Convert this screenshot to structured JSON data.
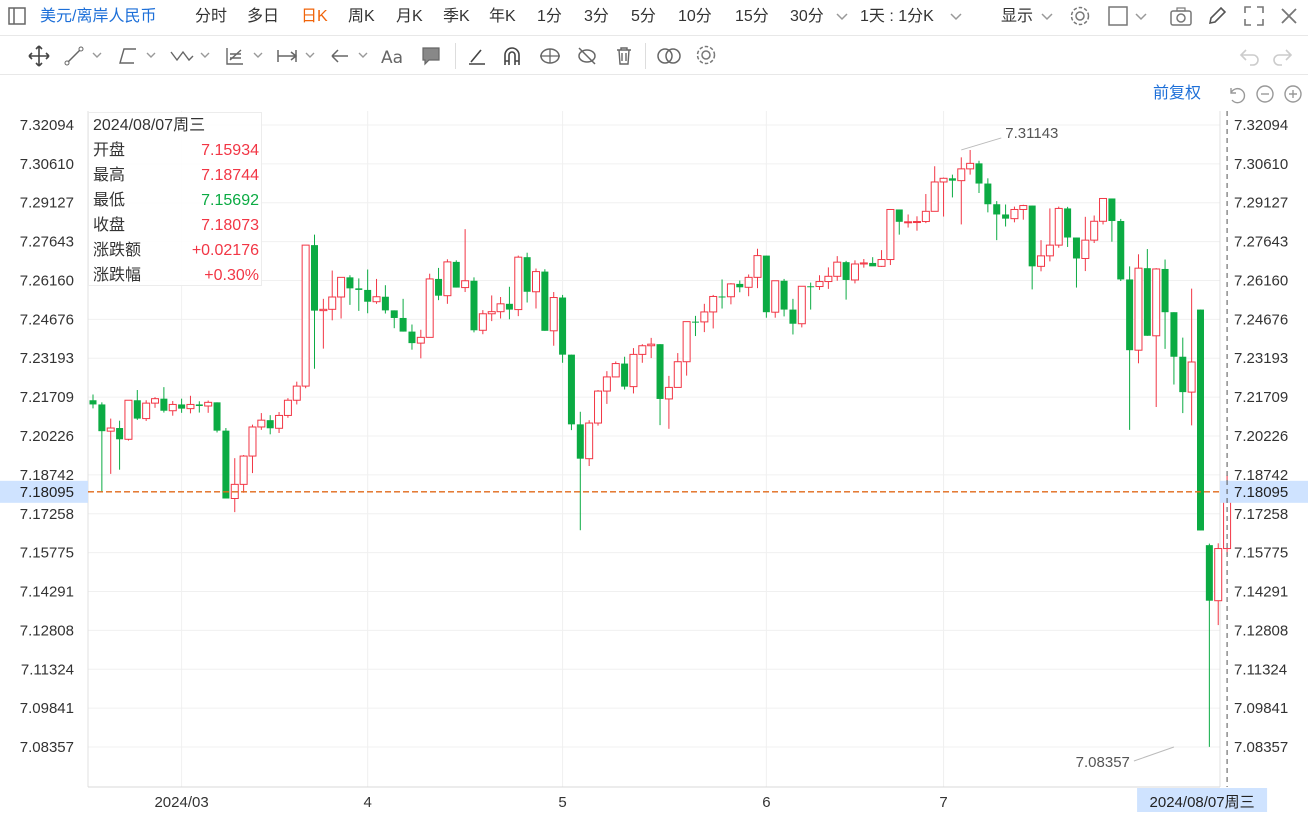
{
  "toolbar": {
    "symbol": "美元/离岸人民币",
    "periods": [
      "分时",
      "多日",
      "日K",
      "周K",
      "月K",
      "季K",
      "年K",
      "1分",
      "3分",
      "5分",
      "10分",
      "15分",
      "30分"
    ],
    "active_period": "日K",
    "range_select": "1天 : 1分K",
    "display": "显示"
  },
  "adjust": "前复权",
  "ohlc": {
    "date": "2024/08/07周三",
    "rows": [
      {
        "label": "开盘",
        "value": "7.15934",
        "color": "r"
      },
      {
        "label": "最高",
        "value": "7.18744",
        "color": "r"
      },
      {
        "label": "最低",
        "value": "7.15692",
        "color": "g"
      },
      {
        "label": "收盘",
        "value": "7.18073",
        "color": "r"
      },
      {
        "label": "涨跌额",
        "value": "+0.02176",
        "color": "r"
      },
      {
        "label": "涨跌幅",
        "value": "+0.30%",
        "color": "r"
      }
    ]
  },
  "chart_data": {
    "type": "candlestick",
    "y_ticks": [
      "7.32094",
      "7.30610",
      "7.29127",
      "7.27643",
      "7.26160",
      "7.24676",
      "7.23193",
      "7.21709",
      "7.20226",
      "7.18742",
      "7.17258",
      "7.15775",
      "7.14291",
      "7.12808",
      "7.11324",
      "7.09841",
      "7.08357"
    ],
    "ylim": [
      7.07,
      7.33
    ],
    "x_labels": [
      {
        "label": "2024/03",
        "at": 10
      },
      {
        "label": "4",
        "at": 31
      },
      {
        "label": "5",
        "at": 53
      },
      {
        "label": "6",
        "at": 76
      },
      {
        "label": "7",
        "at": 96
      }
    ],
    "last_price": "7.18095",
    "last_value": 7.18095,
    "high_annotation": {
      "label": "7.31143",
      "value": 7.31143,
      "at": 98
    },
    "low_annotation": {
      "label": "7.08357",
      "value": 7.08357,
      "at": 122
    },
    "crosshair_label": "2024/08/07周三",
    "candles": [
      [
        7.2159,
        7.2143,
        7.2181,
        7.2128
      ],
      [
        7.2143,
        7.2041,
        7.2151,
        7.1811
      ],
      [
        7.2041,
        7.2053,
        7.2089,
        7.1878
      ],
      [
        7.2053,
        7.201,
        7.2081,
        7.1894
      ],
      [
        7.201,
        7.2159,
        7.2159,
        7.2005
      ],
      [
        7.2159,
        7.2089,
        7.2198,
        7.2084
      ],
      [
        7.2089,
        7.2148,
        7.2159,
        7.208
      ],
      [
        7.2148,
        7.2165,
        7.2171,
        7.213
      ],
      [
        7.2165,
        7.2119,
        7.2209,
        7.2112
      ],
      [
        7.2119,
        7.2143,
        7.2156,
        7.21
      ],
      [
        7.2143,
        7.2127,
        7.2165,
        7.2111
      ],
      [
        7.2127,
        7.2143,
        7.2176,
        7.2109
      ],
      [
        7.2143,
        7.2137,
        7.2155,
        7.2112
      ],
      [
        7.2137,
        7.2151,
        7.2158,
        7.2111
      ],
      [
        7.2151,
        7.2043,
        7.2151,
        7.2036
      ],
      [
        7.2043,
        7.1784,
        7.2053,
        7.1784
      ],
      [
        7.1784,
        7.1838,
        7.1938,
        7.1732
      ],
      [
        7.1838,
        7.1946,
        7.195,
        7.1806
      ],
      [
        7.1946,
        7.2057,
        7.2066,
        7.1881
      ],
      [
        7.2057,
        7.2083,
        7.211,
        7.2046
      ],
      [
        7.2083,
        7.2052,
        7.2102,
        7.2029
      ],
      [
        7.2052,
        7.2101,
        7.2114,
        7.2034
      ],
      [
        7.2101,
        7.2159,
        7.2167,
        7.2092
      ],
      [
        7.2159,
        7.2213,
        7.223,
        7.2143
      ],
      [
        7.2213,
        7.2751,
        7.2751,
        7.2205
      ],
      [
        7.2751,
        7.2501,
        7.2791,
        7.2279
      ],
      [
        7.2501,
        7.2506,
        7.2546,
        7.2356
      ],
      [
        7.2506,
        7.2553,
        7.2654,
        7.2464
      ],
      [
        7.2553,
        7.2628,
        7.2628,
        7.2471
      ],
      [
        7.2628,
        7.2586,
        7.2636,
        7.2523
      ],
      [
        7.2586,
        7.258,
        7.2624,
        7.25
      ],
      [
        7.258,
        7.2535,
        7.2658,
        7.2491
      ],
      [
        7.2535,
        7.2554,
        7.2622,
        7.2527
      ],
      [
        7.2554,
        7.2502,
        7.2598,
        7.249
      ],
      [
        7.2502,
        7.2473,
        7.2502,
        7.2434
      ],
      [
        7.2473,
        7.2421,
        7.2546,
        7.2421
      ],
      [
        7.2421,
        7.2377,
        7.2448,
        7.2352
      ],
      [
        7.2377,
        7.2399,
        7.2428,
        7.2319
      ],
      [
        7.2399,
        7.2622,
        7.2642,
        7.2399
      ],
      [
        7.2622,
        7.2558,
        7.2664,
        7.2541
      ],
      [
        7.2558,
        7.2687,
        7.2697,
        7.2527
      ],
      [
        7.2687,
        7.2589,
        7.2693,
        7.2589
      ],
      [
        7.2589,
        7.2615,
        7.2812,
        7.2572
      ],
      [
        7.2615,
        7.2426,
        7.2628,
        7.2418
      ],
      [
        7.2426,
        7.2489,
        7.2503,
        7.2411
      ],
      [
        7.2489,
        7.2497,
        7.2559,
        7.2461
      ],
      [
        7.2497,
        7.2527,
        7.2553,
        7.2471
      ],
      [
        7.2527,
        7.2505,
        7.2592,
        7.2468
      ],
      [
        7.2505,
        7.2705,
        7.2711,
        7.248
      ],
      [
        7.2705,
        7.2573,
        7.2722,
        7.2532
      ],
      [
        7.2573,
        7.265,
        7.2662,
        7.2509
      ],
      [
        7.265,
        7.2424,
        7.2659,
        7.2424
      ],
      [
        7.2424,
        7.2551,
        7.2572,
        7.2367
      ],
      [
        7.2551,
        7.2333,
        7.2561,
        7.2302
      ],
      [
        7.2333,
        7.2067,
        7.2333,
        7.2045
      ],
      [
        7.2067,
        7.1936,
        7.2115,
        7.1663
      ],
      [
        7.1936,
        7.2072,
        7.2083,
        7.1908
      ],
      [
        7.2072,
        7.2194,
        7.2198,
        7.2062
      ],
      [
        7.2194,
        7.2248,
        7.227,
        7.2145
      ],
      [
        7.2248,
        7.2299,
        7.2307,
        7.2247
      ],
      [
        7.2299,
        7.2211,
        7.2325,
        7.22
      ],
      [
        7.2211,
        7.2334,
        7.2358,
        7.2185
      ],
      [
        7.2334,
        7.2367,
        7.2373,
        7.2302
      ],
      [
        7.2367,
        7.2373,
        7.2397,
        7.232
      ],
      [
        7.2373,
        7.2164,
        7.2373,
        7.2064
      ],
      [
        7.2164,
        7.2208,
        7.2252,
        7.205
      ],
      [
        7.2208,
        7.2306,
        7.2339,
        7.2215
      ],
      [
        7.2306,
        7.2459,
        7.2459,
        7.2253
      ],
      [
        7.2459,
        7.2458,
        7.2481,
        7.2404
      ],
      [
        7.2458,
        7.2496,
        7.2527,
        7.2419
      ],
      [
        7.2496,
        7.2555,
        7.2561,
        7.2433
      ],
      [
        7.2555,
        7.2554,
        7.262,
        7.2509
      ],
      [
        7.2554,
        7.2603,
        7.2606,
        7.2525
      ],
      [
        7.2603,
        7.259,
        7.2616,
        7.2571
      ],
      [
        7.259,
        7.2628,
        7.2639,
        7.2556
      ],
      [
        7.2628,
        7.2711,
        7.2737,
        7.2587
      ],
      [
        7.2711,
        7.2495,
        7.2711,
        7.2474
      ],
      [
        7.2495,
        7.2615,
        7.2615,
        7.2474
      ],
      [
        7.2615,
        7.2505,
        7.2622,
        7.2479
      ],
      [
        7.2505,
        7.2451,
        7.2546,
        7.241
      ],
      [
        7.2451,
        7.2594,
        7.2594,
        7.2437
      ],
      [
        7.2594,
        7.2593,
        7.2608,
        7.2505
      ],
      [
        7.2593,
        7.2612,
        7.2636,
        7.258
      ],
      [
        7.2612,
        7.2632,
        7.2666,
        7.2584
      ],
      [
        7.2632,
        7.2686,
        7.2709,
        7.2615
      ],
      [
        7.2686,
        7.2618,
        7.2691,
        7.2543
      ],
      [
        7.2618,
        7.2679,
        7.2693,
        7.2605
      ],
      [
        7.2679,
        7.2683,
        7.2698,
        7.2665
      ],
      [
        7.2683,
        7.267,
        7.2705,
        7.2671
      ],
      [
        7.267,
        7.2696,
        7.2732,
        7.2668
      ],
      [
        7.2696,
        7.2887,
        7.2887,
        7.2675
      ],
      [
        7.2887,
        7.284,
        7.2887,
        7.2791
      ],
      [
        7.284,
        7.284,
        7.2868,
        7.2818
      ],
      [
        7.284,
        7.2841,
        7.2861,
        7.2806
      ],
      [
        7.2841,
        7.288,
        7.2946,
        7.2835
      ],
      [
        7.288,
        7.2992,
        7.3052,
        7.2885
      ],
      [
        7.2992,
        7.3006,
        7.3009,
        7.286
      ],
      [
        7.3006,
        7.2997,
        7.302,
        7.2933
      ],
      [
        7.2997,
        7.3042,
        7.3086,
        7.283
      ],
      [
        7.3042,
        7.3063,
        7.3114,
        7.302
      ],
      [
        7.3063,
        7.2986,
        7.3073,
        7.295
      ],
      [
        7.2986,
        7.2907,
        7.3006,
        7.2876
      ],
      [
        7.2907,
        7.2868,
        7.2919,
        7.277
      ],
      [
        7.2868,
        7.2852,
        7.2906,
        7.2822
      ],
      [
        7.2852,
        7.2887,
        7.2898,
        7.2838
      ],
      [
        7.2887,
        7.2902,
        7.2905,
        7.2848
      ],
      [
        7.2902,
        7.267,
        7.2902,
        7.2582
      ],
      [
        7.267,
        7.271,
        7.277,
        7.2651
      ],
      [
        7.271,
        7.2751,
        7.2891,
        7.2689
      ],
      [
        7.2751,
        7.2891,
        7.2898,
        7.2741
      ],
      [
        7.2891,
        7.278,
        7.2897,
        7.2744
      ],
      [
        7.278,
        7.27,
        7.278,
        7.2589
      ],
      [
        7.27,
        7.277,
        7.2859,
        7.2652
      ],
      [
        7.277,
        7.2842,
        7.2864,
        7.2759
      ],
      [
        7.2842,
        7.2929,
        7.2929,
        7.283
      ],
      [
        7.2929,
        7.2843,
        7.2929,
        7.2764
      ],
      [
        7.2843,
        7.262,
        7.2851,
        7.2614
      ],
      [
        7.262,
        7.235,
        7.267,
        7.2046
      ],
      [
        7.235,
        7.2663,
        7.2716,
        7.23
      ],
      [
        7.2663,
        7.2405,
        7.2736,
        7.2405
      ],
      [
        7.2405,
        7.266,
        7.2663,
        7.2133
      ],
      [
        7.266,
        7.2495,
        7.2696,
        7.2355
      ],
      [
        7.2495,
        7.2325,
        7.2495,
        7.2219
      ],
      [
        7.2325,
        7.219,
        7.2398,
        7.211
      ],
      [
        7.219,
        7.2305,
        7.2585,
        7.2063
      ],
      [
        7.2505,
        7.1662,
        7.2505,
        7.1662
      ],
      [
        7.1606,
        7.1394,
        7.1612,
        7.0836
      ],
      [
        7.1394,
        7.1593,
        7.1613,
        7.1301
      ],
      [
        7.1593,
        7.1807,
        7.1874,
        7.1569
      ]
    ]
  }
}
